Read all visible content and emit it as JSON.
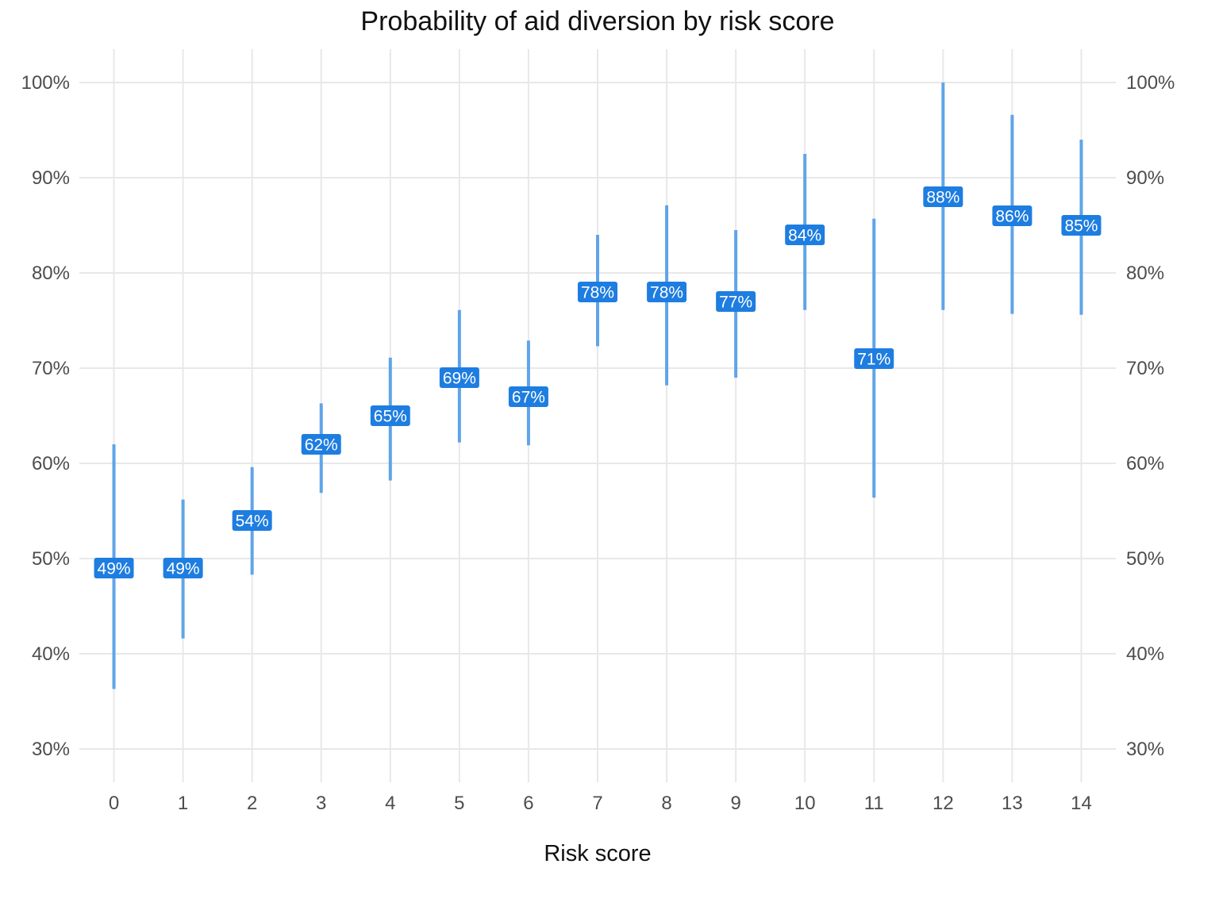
{
  "chart_data": {
    "type": "errorbar",
    "title": "Probability of aid diversion by risk score",
    "xlabel": "Risk score",
    "ylabel": "",
    "x": [
      0,
      1,
      2,
      3,
      4,
      5,
      6,
      7,
      8,
      9,
      10,
      11,
      12,
      13,
      14
    ],
    "x_tick_labels": [
      "0",
      "1",
      "2",
      "3",
      "4",
      "5",
      "6",
      "7",
      "8",
      "9",
      "10",
      "11",
      "12",
      "13",
      "14"
    ],
    "estimates": [
      49,
      49,
      54,
      62,
      65,
      69,
      67,
      78,
      78,
      77,
      84,
      71,
      88,
      86,
      85
    ],
    "lower": [
      36.3,
      41.6,
      48.3,
      56.9,
      58.2,
      62.2,
      61.9,
      72.3,
      68.2,
      69.0,
      76.1,
      56.4,
      76.1,
      75.7,
      75.6
    ],
    "upper": [
      62.0,
      56.2,
      59.6,
      66.3,
      71.1,
      76.1,
      72.9,
      84.0,
      87.1,
      84.5,
      92.5,
      85.7,
      100.0,
      96.6,
      94.0
    ],
    "data_labels": [
      "49%",
      "49%",
      "54%",
      "62%",
      "65%",
      "69%",
      "67%",
      "78%",
      "78%",
      "77%",
      "84%",
      "71%",
      "88%",
      "86%",
      "85%"
    ],
    "y_tick_values": [
      30,
      40,
      50,
      60,
      70,
      80,
      90,
      100
    ],
    "y_tick_labels": [
      "30%",
      "40%",
      "50%",
      "60%",
      "70%",
      "80%",
      "90%",
      "100%"
    ],
    "ylim": [
      26.5,
      103.5
    ],
    "xlim": [
      -0.5,
      14.5
    ],
    "secondary_y_axis": true,
    "grid": true,
    "colors": {
      "errorbar": "#5fa4e8",
      "label_fill": "#1e7de0",
      "label_text": "#ffffff",
      "grid": "#e8e8e8",
      "tick_text": "#4d4d4d"
    }
  }
}
